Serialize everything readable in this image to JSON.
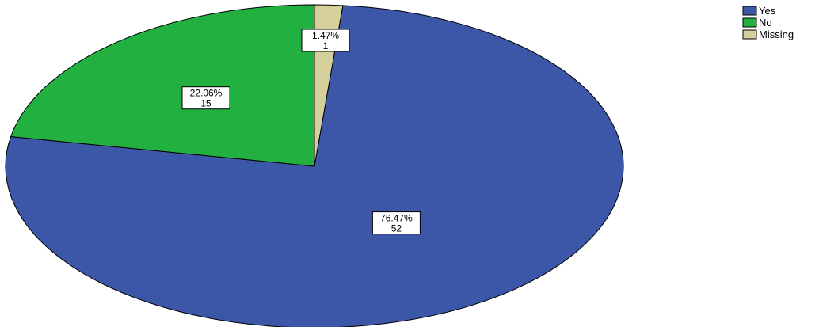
{
  "chart_data": {
    "type": "pie",
    "slices": [
      {
        "name": "Yes",
        "percent_label": "76.47%",
        "count_label": "52",
        "value": 52,
        "color": "#3c56a8"
      },
      {
        "name": "No",
        "percent_label": "22.06%",
        "count_label": "15",
        "value": 15,
        "color": "#22b040"
      },
      {
        "name": "Missing",
        "percent_label": "1.47%",
        "count_label": "1",
        "value": 1,
        "color": "#d5cf9c"
      }
    ],
    "legend_position": "top-right"
  }
}
